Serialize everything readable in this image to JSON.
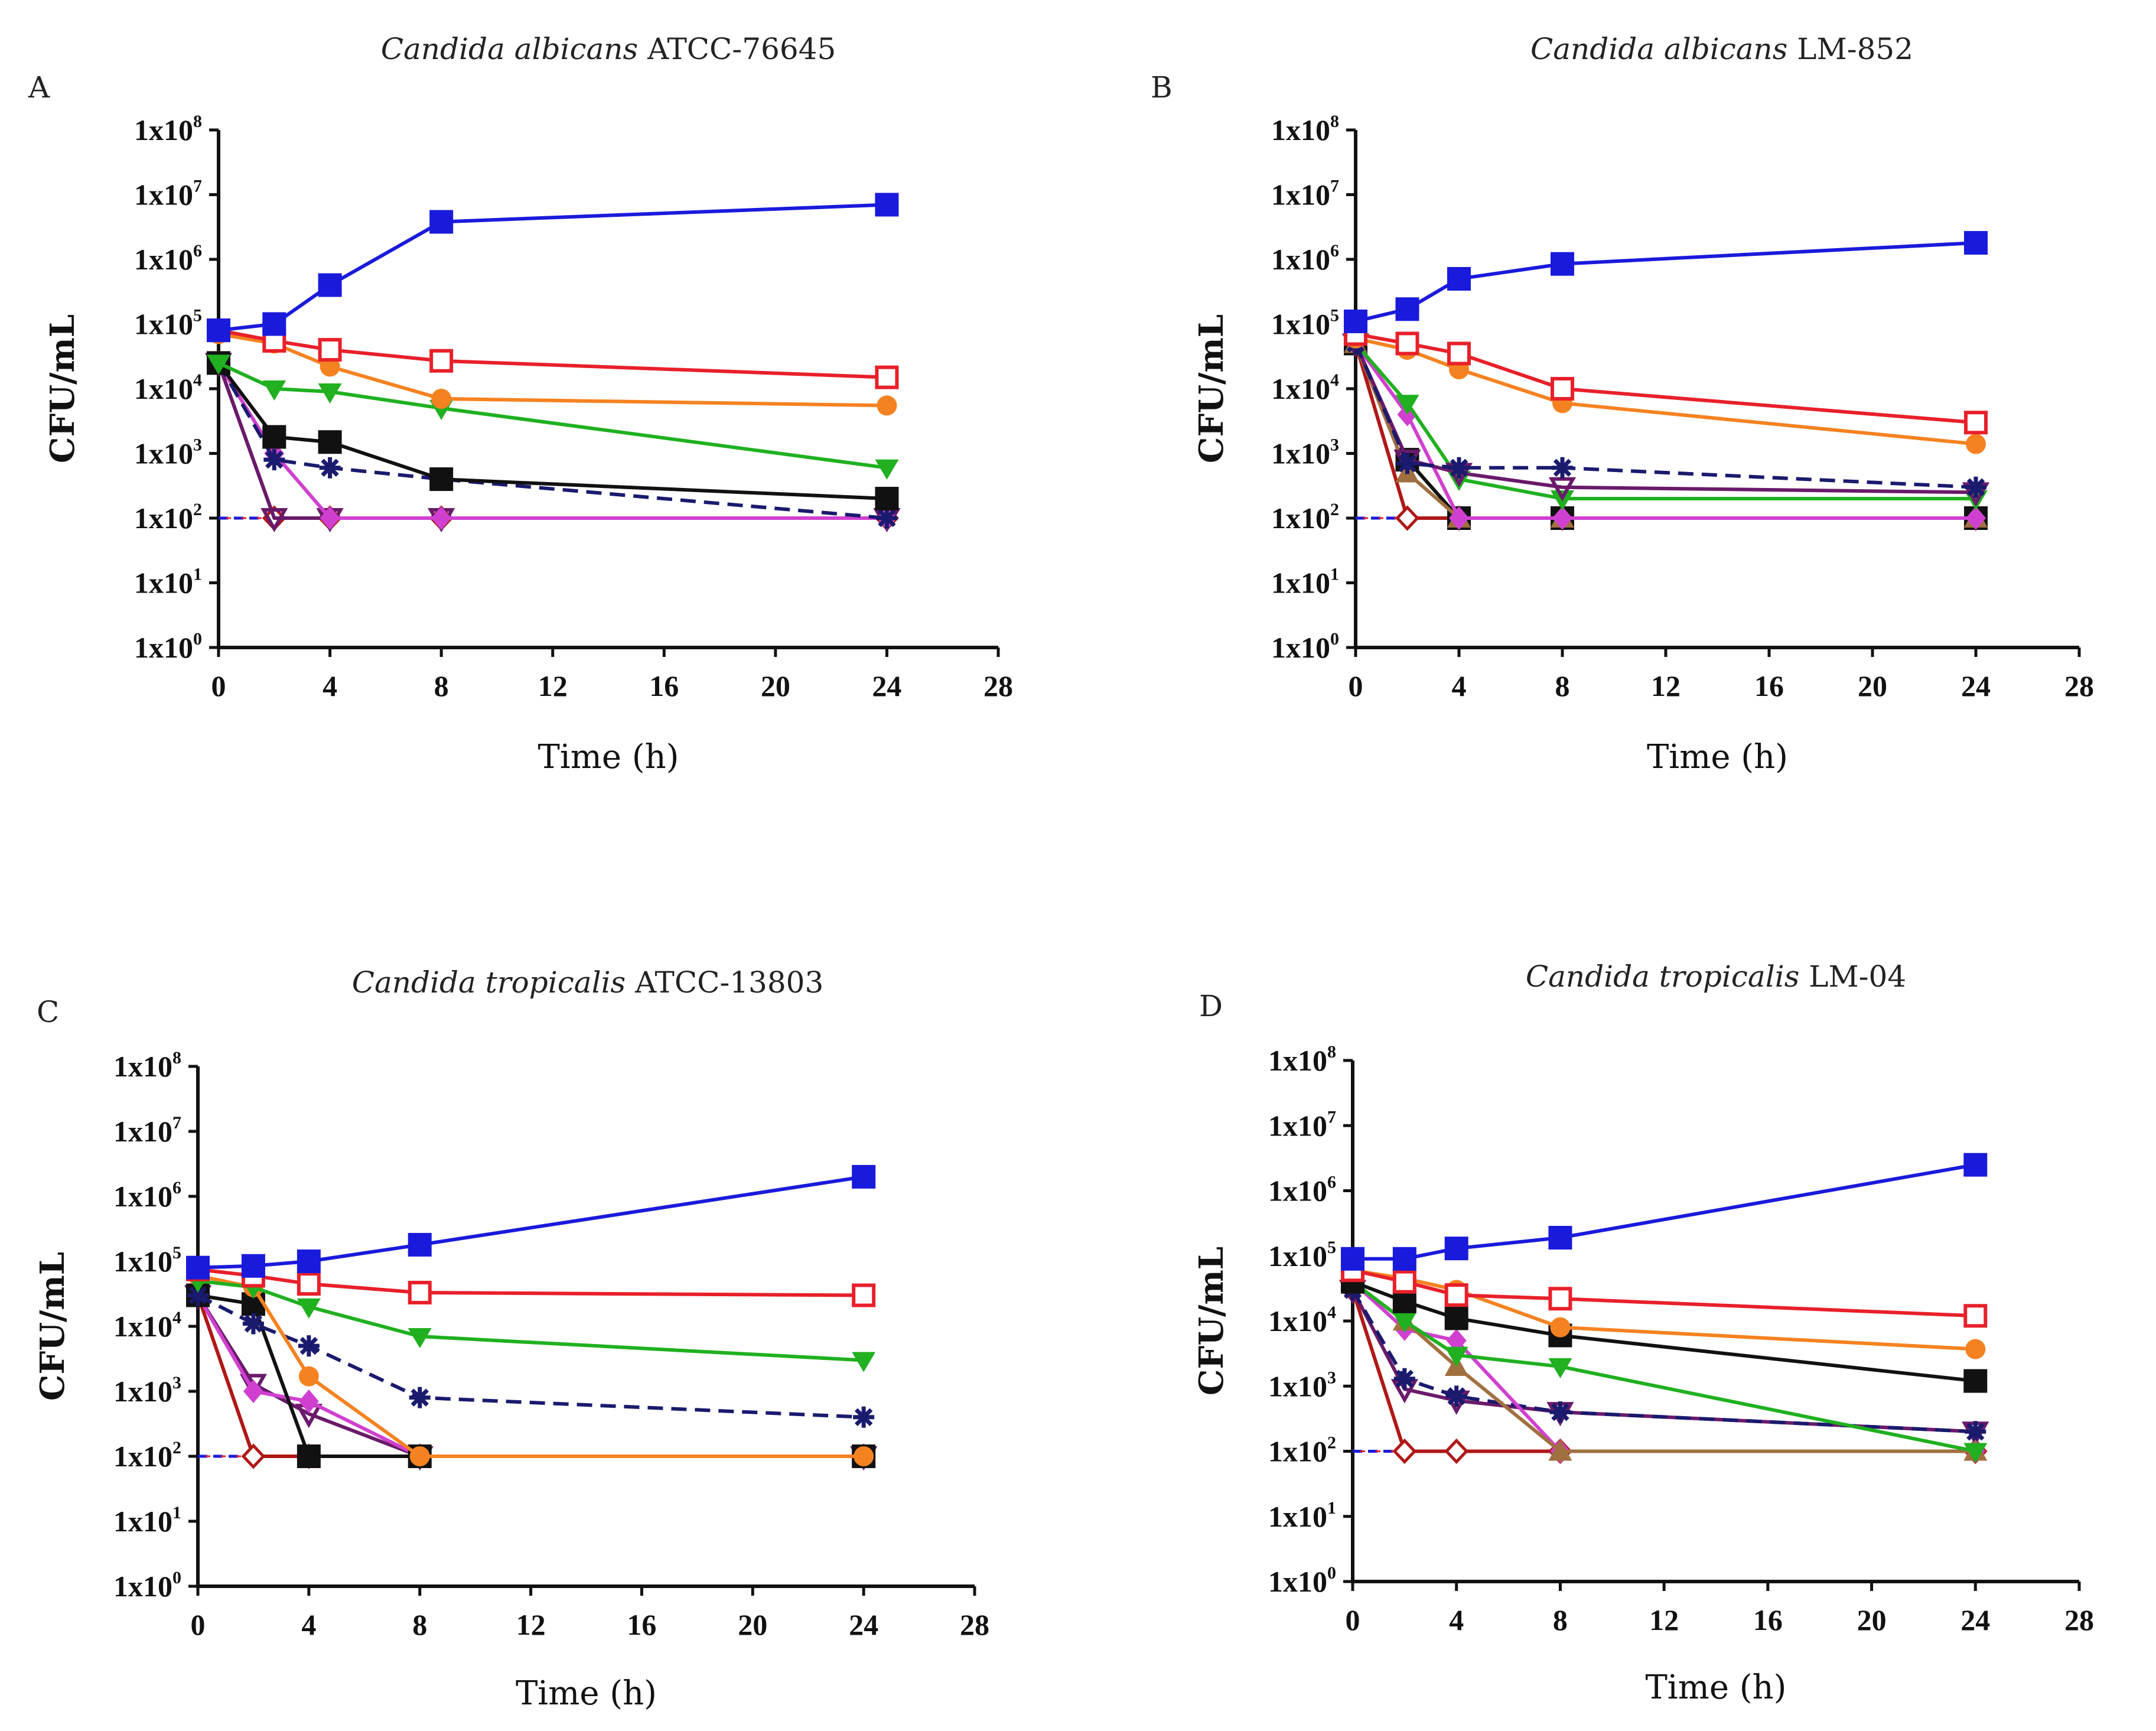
{
  "figure": {
    "panel_count": 4
  },
  "chart_data": [
    {
      "panel": "A",
      "type": "line",
      "title_italic": "Candida albicans",
      "title_rest": " ATCC-76645",
      "xlabel": "Time (h)",
      "ylabel": "CFU/mL",
      "xlim": [
        0,
        28
      ],
      "xticks": [
        0,
        4,
        8,
        12,
        16,
        20,
        24,
        28
      ],
      "yscale": "log",
      "ylim_exp": [
        0,
        8
      ],
      "ytick_base": "1x10",
      "ytick_exps": [
        0,
        1,
        2,
        3,
        4,
        5,
        6,
        7,
        8
      ],
      "detection_limit": 100,
      "series": [
        {
          "name": "control",
          "color": "#1a1adc",
          "marker": "square-filled",
          "dash": false,
          "x": [
            0,
            2,
            4,
            8,
            24
          ],
          "y": [
            80000,
            100000,
            400000,
            3800000,
            7000000
          ]
        },
        {
          "name": "series-red-open-square",
          "color": "#e8202a",
          "marker": "square-open",
          "dash": false,
          "x": [
            0,
            2,
            4,
            8,
            24
          ],
          "y": [
            80000,
            55000,
            40000,
            27000,
            15000
          ]
        },
        {
          "name": "series-orange-circle",
          "color": "#f58220",
          "marker": "circle",
          "dash": false,
          "x": [
            0,
            2,
            4,
            8,
            24
          ],
          "y": [
            70000,
            50000,
            22000,
            7000,
            5500
          ]
        },
        {
          "name": "series-green-triangle-down",
          "color": "#20b020",
          "marker": "triangle-down",
          "dash": false,
          "x": [
            0,
            2,
            4,
            8,
            24
          ],
          "y": [
            25000,
            10000,
            9000,
            5000,
            600
          ]
        },
        {
          "name": "series-black-square",
          "color": "#111111",
          "marker": "square-filled",
          "dash": false,
          "x": [
            0,
            2,
            4,
            8,
            24
          ],
          "y": [
            25000,
            1800,
            1500,
            400,
            200
          ]
        },
        {
          "name": "series-navy-star-dashed",
          "color": "#1a1a6e",
          "marker": "star",
          "dash": true,
          "x": [
            0,
            2,
            4,
            8,
            24
          ],
          "y": [
            25000,
            800,
            600,
            400,
            100
          ]
        },
        {
          "name": "series-magenta-diamond",
          "color": "#d040d0",
          "marker": "diamond",
          "dash": false,
          "x": [
            0,
            2,
            4,
            8,
            24
          ],
          "y": [
            25000,
            1000,
            100,
            100,
            100
          ]
        },
        {
          "name": "series-purple-triangle",
          "color": "#6a1a6a",
          "marker": "triangle-down-open",
          "dash": false,
          "x": [
            0,
            2,
            4,
            8,
            24
          ],
          "y": [
            25000,
            100,
            100,
            100,
            100
          ]
        },
        {
          "name": "series-darkred-diamond-open",
          "color": "#b01818",
          "marker": "diamond-open",
          "dash": false,
          "x": [
            0,
            2,
            4,
            8,
            24
          ],
          "y": [
            25000,
            100,
            100,
            100,
            100
          ]
        }
      ]
    },
    {
      "panel": "B",
      "type": "line",
      "title_italic": "Candida albicans",
      "title_rest": " LM-852",
      "xlabel": "Time (h)",
      "ylabel": "CFU/mL",
      "xlim": [
        0,
        28
      ],
      "xticks": [
        0,
        4,
        8,
        12,
        16,
        20,
        24,
        28
      ],
      "yscale": "log",
      "ylim_exp": [
        0,
        8
      ],
      "ytick_base": "1x10",
      "ytick_exps": [
        0,
        1,
        2,
        3,
        4,
        5,
        6,
        7,
        8
      ],
      "detection_limit": 100,
      "series": [
        {
          "name": "control",
          "color": "#1a1adc",
          "marker": "square-filled",
          "dash": false,
          "x": [
            0,
            2,
            4,
            8,
            24
          ],
          "y": [
            110000,
            170000,
            500000,
            850000,
            1800000
          ]
        },
        {
          "name": "series-red-open-square",
          "color": "#e8202a",
          "marker": "square-open",
          "dash": false,
          "x": [
            0,
            2,
            4,
            8,
            24
          ],
          "y": [
            70000,
            50000,
            35000,
            10000,
            3000
          ]
        },
        {
          "name": "series-orange-circle",
          "color": "#f58220",
          "marker": "circle",
          "dash": false,
          "x": [
            0,
            2,
            4,
            8,
            24
          ],
          "y": [
            60000,
            40000,
            20000,
            6000,
            1400
          ]
        },
        {
          "name": "series-navy-star-dashed",
          "color": "#1a1a6e",
          "marker": "star",
          "dash": true,
          "x": [
            0,
            2,
            4,
            8,
            24
          ],
          "y": [
            50000,
            700,
            600,
            600,
            300
          ]
        },
        {
          "name": "series-purple-triangle",
          "color": "#6a1a6a",
          "marker": "triangle-down-open",
          "dash": false,
          "x": [
            0,
            2,
            4,
            8,
            24
          ],
          "y": [
            50000,
            800,
            500,
            300,
            250
          ]
        },
        {
          "name": "series-green-triangle-down",
          "color": "#20b020",
          "marker": "triangle-down",
          "dash": false,
          "x": [
            0,
            2,
            4,
            8,
            24
          ],
          "y": [
            50000,
            6000,
            400,
            200,
            200
          ]
        },
        {
          "name": "series-magenta-diamond",
          "color": "#d040d0",
          "marker": "diamond",
          "dash": false,
          "x": [
            0,
            2,
            4,
            8,
            24
          ],
          "y": [
            50000,
            4000,
            100,
            100,
            100
          ]
        },
        {
          "name": "series-brown-triangle",
          "color": "#a07040",
          "marker": "triangle-up",
          "dash": false,
          "x": [
            0,
            2,
            4,
            8,
            24
          ],
          "y": [
            50000,
            500,
            100,
            100,
            100
          ]
        },
        {
          "name": "series-black-square",
          "color": "#111111",
          "marker": "square-filled",
          "dash": false,
          "x": [
            0,
            2,
            4,
            8,
            24
          ],
          "y": [
            50000,
            800,
            100,
            100,
            100
          ]
        },
        {
          "name": "series-darkred-diamond-open",
          "color": "#b01818",
          "marker": "diamond-open",
          "dash": false,
          "x": [
            0,
            2,
            4,
            8,
            24
          ],
          "y": [
            50000,
            100,
            100,
            100,
            100
          ]
        }
      ]
    },
    {
      "panel": "C",
      "type": "line",
      "title_italic": "Candida tropicalis",
      "title_rest": " ATCC-13803",
      "xlabel": "Time (h)",
      "ylabel": "CFU/mL",
      "xlim": [
        0,
        28
      ],
      "xticks": [
        0,
        4,
        8,
        12,
        16,
        20,
        24,
        28
      ],
      "yscale": "log",
      "ylim_exp": [
        0,
        8
      ],
      "ytick_base": "1x10",
      "ytick_exps": [
        0,
        1,
        2,
        3,
        4,
        5,
        6,
        7,
        8
      ],
      "detection_limit": 100,
      "series": [
        {
          "name": "control",
          "color": "#1a1adc",
          "marker": "square-filled",
          "dash": false,
          "x": [
            0,
            2,
            4,
            8,
            24
          ],
          "y": [
            80000,
            85000,
            100000,
            180000,
            2000000
          ]
        },
        {
          "name": "series-red-open-square",
          "color": "#e8202a",
          "marker": "square-open",
          "dash": false,
          "x": [
            0,
            2,
            4,
            8,
            24
          ],
          "y": [
            75000,
            60000,
            45000,
            33000,
            30000
          ]
        },
        {
          "name": "series-green-triangle-down",
          "color": "#20b020",
          "marker": "triangle-down",
          "dash": false,
          "x": [
            0,
            2,
            4,
            8,
            24
          ],
          "y": [
            50000,
            40000,
            20000,
            7000,
            3000
          ]
        },
        {
          "name": "series-orange-circle",
          "color": "#f58220",
          "marker": "circle",
          "dash": false,
          "x": [
            0,
            2,
            4,
            8,
            24
          ],
          "y": [
            60000,
            40000,
            1700,
            100,
            100
          ]
        },
        {
          "name": "series-navy-star-dashed",
          "color": "#1a1a6e",
          "marker": "star",
          "dash": true,
          "x": [
            0,
            2,
            4,
            8,
            24
          ],
          "y": [
            30000,
            11000,
            5000,
            800,
            400
          ]
        },
        {
          "name": "series-black-square",
          "color": "#111111",
          "marker": "square-filled",
          "dash": false,
          "x": [
            0,
            2,
            4,
            8,
            24
          ],
          "y": [
            30000,
            22000,
            100,
            100,
            100
          ]
        },
        {
          "name": "series-magenta-diamond",
          "color": "#d040d0",
          "marker": "diamond",
          "dash": false,
          "x": [
            0,
            2,
            4,
            8,
            24
          ],
          "y": [
            30000,
            1000,
            700,
            100,
            100
          ]
        },
        {
          "name": "series-purple-triangle",
          "color": "#6a1a6a",
          "marker": "triangle-down-open",
          "dash": false,
          "x": [
            0,
            2,
            4,
            8,
            24
          ],
          "y": [
            30000,
            1300,
            450,
            100,
            100
          ]
        },
        {
          "name": "series-darkred-diamond-open",
          "color": "#b01818",
          "marker": "diamond-open",
          "dash": false,
          "x": [
            0,
            2,
            4,
            8,
            24
          ],
          "y": [
            30000,
            100,
            100,
            100,
            100
          ]
        }
      ]
    },
    {
      "panel": "D",
      "type": "line",
      "title_italic": "Candida tropicalis",
      "title_rest": " LM-04",
      "xlabel": "Time (h)",
      "ylabel": "CFU/mL",
      "xlim": [
        0,
        28
      ],
      "xticks": [
        0,
        4,
        8,
        12,
        16,
        20,
        24,
        28
      ],
      "yscale": "log",
      "ylim_exp": [
        0,
        8
      ],
      "ytick_base": "1x10",
      "ytick_exps": [
        0,
        1,
        2,
        3,
        4,
        5,
        6,
        7,
        8
      ],
      "detection_limit": 100,
      "series": [
        {
          "name": "control",
          "color": "#1a1adc",
          "marker": "square-filled",
          "dash": false,
          "x": [
            0,
            2,
            4,
            8,
            24
          ],
          "y": [
            90000,
            90000,
            130000,
            190000,
            2500000
          ]
        },
        {
          "name": "series-red-open-square",
          "color": "#e8202a",
          "marker": "square-open",
          "dash": false,
          "x": [
            0,
            2,
            4,
            8,
            24
          ],
          "y": [
            60000,
            40000,
            25000,
            22000,
            12000
          ]
        },
        {
          "name": "series-orange-circle",
          "color": "#f58220",
          "marker": "circle",
          "dash": false,
          "x": [
            0,
            2,
            4,
            8,
            24
          ],
          "y": [
            60000,
            45000,
            30000,
            8000,
            3700
          ]
        },
        {
          "name": "series-black-square",
          "color": "#111111",
          "marker": "square-filled",
          "dash": false,
          "x": [
            0,
            2,
            4,
            8,
            24
          ],
          "y": [
            40000,
            20000,
            11000,
            6000,
            1200
          ]
        },
        {
          "name": "series-green-triangle-down",
          "color": "#20b020",
          "marker": "triangle-down",
          "dash": false,
          "x": [
            0,
            2,
            4,
            8,
            24
          ],
          "y": [
            40000,
            10000,
            3000,
            2000,
            100
          ]
        },
        {
          "name": "series-brown-triangle",
          "color": "#a07040",
          "marker": "triangle-up",
          "dash": false,
          "x": [
            0,
            2,
            4,
            8,
            24
          ],
          "y": [
            40000,
            10000,
            2000,
            100,
            100
          ]
        },
        {
          "name": "series-magenta-diamond",
          "color": "#d040d0",
          "marker": "diamond",
          "dash": false,
          "x": [
            0,
            2,
            4,
            8,
            24
          ],
          "y": [
            40000,
            7500,
            5000,
            100,
            100
          ]
        },
        {
          "name": "series-navy-star-dashed",
          "color": "#1a1a6e",
          "marker": "star",
          "dash": true,
          "x": [
            0,
            2,
            4,
            8,
            24
          ],
          "y": [
            30000,
            1300,
            700,
            400,
            200
          ]
        },
        {
          "name": "series-purple-triangle",
          "color": "#6a1a6a",
          "marker": "triangle-down-open",
          "dash": false,
          "x": [
            0,
            2,
            4,
            8,
            24
          ],
          "y": [
            30000,
            900,
            600,
            400,
            200
          ]
        },
        {
          "name": "series-darkred-diamond-open",
          "color": "#b01818",
          "marker": "diamond-open",
          "dash": false,
          "x": [
            0,
            2,
            4,
            8,
            24
          ],
          "y": [
            30000,
            100,
            100,
            100,
            100
          ]
        }
      ]
    }
  ]
}
